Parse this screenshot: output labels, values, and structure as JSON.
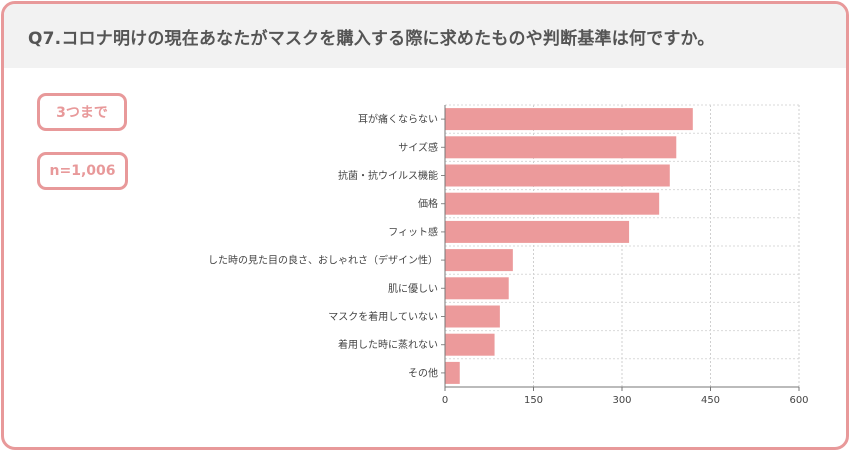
{
  "header": {
    "title": "Q7.コロナ明けの現在あなたがマスクを購入する際に求めたものや判断基準は何ですか。"
  },
  "badges": {
    "selection_limit": "3つまで",
    "sample_size": "n=1,006"
  },
  "colors": {
    "accent": "#e8999a",
    "bar": "#ec9a9b",
    "header_bg": "#f2f2f2",
    "title_text": "#555555"
  },
  "chart_data": {
    "type": "bar",
    "orientation": "horizontal",
    "title": "",
    "xlabel": "",
    "ylabel": "",
    "categories": [
      "耳が痛くならない",
      "サイズ感",
      "抗菌・抗ウイルス機能",
      "価格",
      "フィット感",
      "した時の見た目の良さ、おしゃれさ（デザイン性）",
      "肌に優しい",
      "マスクを着用していない",
      "着用した時に蒸れない",
      "その他"
    ],
    "values": [
      420,
      392,
      381,
      363,
      312,
      115,
      108,
      93,
      84,
      25
    ],
    "xlim": [
      0,
      600
    ],
    "xticks": [
      0,
      150,
      300,
      450,
      600
    ],
    "grid": true,
    "legend": "none"
  }
}
